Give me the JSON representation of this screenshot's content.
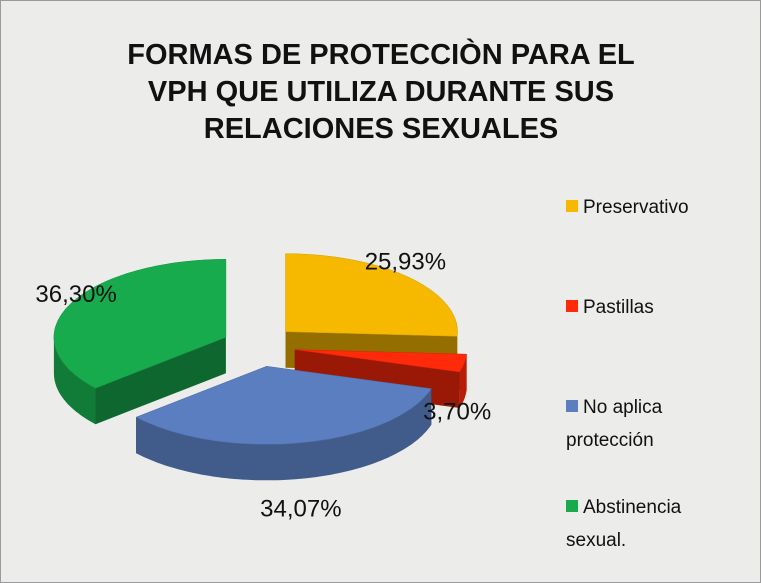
{
  "chart_data": {
    "type": "pie3d",
    "title": "FORMAS DE PROTECCIÒN PARA EL VPH QUE  UTILIZA DURANTE SUS RELACIONES SEXUALES",
    "categories": [
      "Preservativo",
      "Pastillas",
      "No aplica protección",
      "Abstinencia sexual."
    ],
    "values": [
      25.93,
      3.7,
      34.07,
      36.3
    ],
    "value_labels": [
      "25,93%",
      "3,70%",
      "34,07%",
      "36,30%"
    ],
    "colors": [
      "#f6b900",
      "#ff2a0a",
      "#5a7ec0",
      "#17ab4e"
    ],
    "legend": "right"
  }
}
